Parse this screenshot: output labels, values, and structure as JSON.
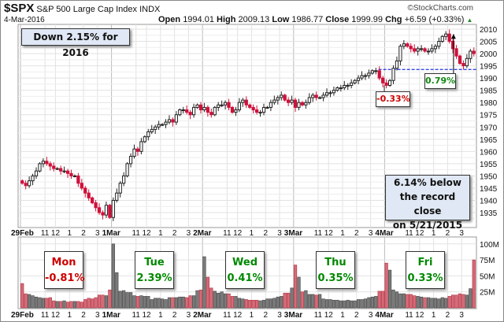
{
  "header": {
    "symbol": "$SPX",
    "name": "S&P 500 Large Cap Index",
    "exchange": "INDX",
    "date": "4-Mar-2016",
    "open_label": "Open",
    "open": "1994.01",
    "high_label": "High",
    "high": "2009.13",
    "low_label": "Low",
    "low": "1986.77",
    "close_label": "Close",
    "close": "1999.99",
    "chg_label": "Chg",
    "chg": "+6.59 (+0.33%)",
    "watermark": "©StockCharts.com"
  },
  "annotations": {
    "ytd": "Down 2.15% for 2016",
    "record_1": "6.14% below",
    "record_2": "the record close",
    "record_3": "on 5/21/2015",
    "dip": "-0.33%",
    "peak": "0.79%"
  },
  "days": [
    {
      "name": "Mon",
      "chg": "-0.81%",
      "color": "#cc0000"
    },
    {
      "name": "Tue",
      "chg": "2.39%",
      "color": "#008800"
    },
    {
      "name": "Wed",
      "chg": "0.41%",
      "color": "#008800"
    },
    {
      "name": "Thu",
      "chg": "0.35%",
      "color": "#008800"
    },
    {
      "name": "Fri",
      "chg": "0.33%",
      "color": "#008800"
    }
  ],
  "chart_data": {
    "type": "candlestick",
    "price_axis": {
      "min": 1930,
      "max": 2012,
      "ticks": [
        2010,
        2005,
        2000,
        1995,
        1990,
        1985,
        1980,
        1975,
        1970,
        1965,
        1960,
        1955,
        1950,
        1945,
        1940,
        1935
      ]
    },
    "volume_axis": {
      "min": 0,
      "max": 105,
      "ticks": [
        100,
        75,
        50,
        25
      ],
      "tick_labels": [
        "100M",
        "75M",
        "50M",
        "25M"
      ]
    },
    "x_labels": [
      "29Feb",
      "11",
      "12",
      "1",
      "2",
      "3",
      "1Mar",
      "11",
      "12",
      "1",
      "2",
      "3",
      "2Mar",
      "11",
      "12",
      "1",
      "2",
      "3",
      "3Mar",
      "11",
      "12",
      "1",
      "2",
      "3",
      "4Mar",
      "11",
      "12",
      "1",
      "2",
      "3"
    ],
    "reference_line": 1993.5,
    "first_open": 1948,
    "closes": [
      1947,
      1946,
      1948,
      1950,
      1952,
      1955,
      1956,
      1955,
      1954,
      1953,
      1953,
      1952,
      1952,
      1951,
      1950,
      1950,
      1947,
      1945,
      1943,
      1941,
      1939,
      1937,
      1935,
      1934,
      1938,
      1933,
      1940,
      1943,
      1947,
      1950,
      1955,
      1958,
      1961,
      1960,
      1964,
      1966,
      1968,
      1969,
      1970,
      1971,
      1971,
      1972,
      1973,
      1972,
      1975,
      1977,
      1977,
      1976,
      1975,
      1978,
      1979,
      1977,
      1978,
      1976,
      1975,
      1978,
      1979,
      1979,
      1980,
      1978,
      1976,
      1977,
      1980,
      1981,
      1979,
      1978,
      1977,
      1976,
      1976,
      1978,
      1978,
      1980,
      1981,
      1982,
      1983,
      1981,
      1980,
      1981,
      1978,
      1980,
      1979,
      1980,
      1982,
      1983,
      1982,
      1982,
      1983,
      1984,
      1984,
      1985,
      1986,
      1986,
      1987,
      1987,
      1988,
      1989,
      1990,
      1991,
      1991,
      1992,
      1993,
      1993,
      1990,
      1988,
      1987,
      1989,
      1994,
      1997,
      2003,
      2004,
      2003,
      2002,
      2001,
      2002,
      2002,
      2001,
      2001,
      2002,
      2003,
      2005,
      2007,
      2008,
      2005,
      2002,
      1999,
      1996,
      1995,
      1998,
      2001,
      2000
    ],
    "volumes_m": [
      38,
      22,
      21,
      19,
      17,
      16,
      15,
      15,
      16,
      11,
      10,
      10,
      11,
      9,
      10,
      10,
      10,
      9,
      13,
      15,
      14,
      16,
      20,
      20,
      19,
      28,
      100,
      55,
      26,
      27,
      24,
      24,
      19,
      18,
      19,
      18,
      18,
      13,
      15,
      15,
      14,
      13,
      16,
      16,
      16,
      17,
      17,
      16,
      19,
      19,
      27,
      28,
      80,
      48,
      31,
      26,
      23,
      25,
      22,
      22,
      18,
      18,
      15,
      14,
      13,
      12,
      12,
      12,
      11,
      12,
      14,
      14,
      15,
      17,
      18,
      23,
      23,
      31,
      67,
      48,
      25,
      27,
      21,
      21,
      20,
      21,
      14,
      13,
      13,
      12,
      12,
      11,
      11,
      12,
      11,
      11,
      13,
      13,
      14,
      16,
      17,
      18,
      26,
      26,
      70,
      59,
      28,
      25,
      22,
      22,
      21,
      21,
      19,
      18,
      17,
      16,
      16,
      15,
      15,
      14,
      16,
      15,
      18,
      20,
      20,
      22,
      21,
      20,
      30,
      75
    ]
  }
}
